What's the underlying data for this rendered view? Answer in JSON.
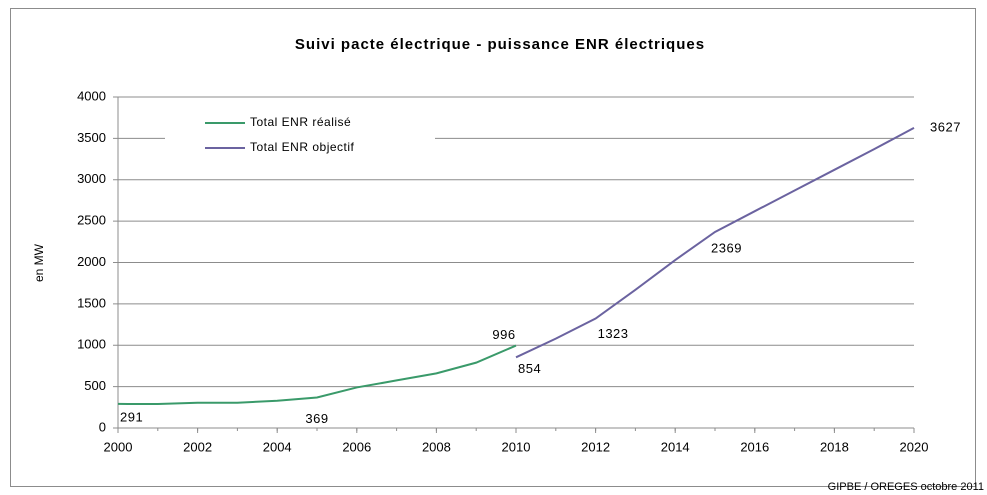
{
  "chart_data": {
    "type": "line",
    "title": "Suivi pacte électrique - puissance ENR électriques",
    "y_label": "en MW",
    "source": "GIPBE / OREGES octobre 2011",
    "x": [
      2000,
      2001,
      2002,
      2003,
      2004,
      2005,
      2006,
      2007,
      2008,
      2009,
      2010,
      2011,
      2012,
      2013,
      2014,
      2015,
      2016,
      2017,
      2018,
      2019,
      2020
    ],
    "series": [
      {
        "name": "Total ENR réalisé",
        "color": "#3a9a6a",
        "values": [
          291,
          290,
          305,
          305,
          330,
          369,
          490,
          575,
          660,
          790,
          996,
          null,
          null,
          null,
          null,
          null,
          null,
          null,
          null,
          null,
          null
        ],
        "labeled_points": [
          0,
          5,
          10
        ]
      },
      {
        "name": "Total ENR objectif",
        "color": "#6b63a0",
        "values": [
          null,
          null,
          null,
          null,
          null,
          null,
          null,
          null,
          null,
          null,
          854,
          1080,
          1323,
          1670,
          2030,
          2369,
          2620,
          2870,
          3120,
          3370,
          3627
        ],
        "labeled_points": [
          10,
          12,
          15,
          20
        ]
      }
    ],
    "xlim": [
      2000,
      2020
    ],
    "xticks": [
      2000,
      2002,
      2004,
      2006,
      2008,
      2010,
      2012,
      2014,
      2016,
      2018,
      2020
    ],
    "ylim": [
      0,
      4000
    ],
    "yticks": [
      0,
      500,
      1000,
      1500,
      2000,
      2500,
      3000,
      3500,
      4000
    ],
    "grid": true,
    "legend": "top-left"
  }
}
